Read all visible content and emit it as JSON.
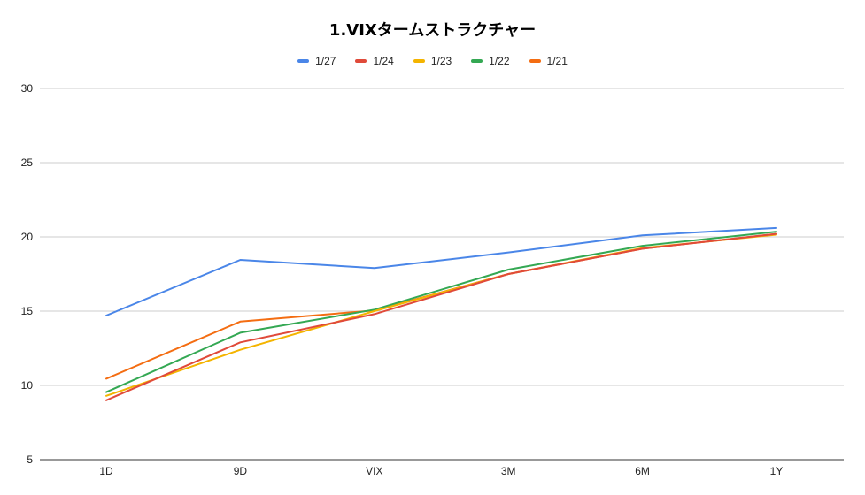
{
  "chart_data": {
    "type": "line",
    "title": "1.VIXタームストラクチャー",
    "categories": [
      "1D",
      "9D",
      "VIX",
      "3M",
      "6M",
      "1Y"
    ],
    "yticks": [
      "30",
      "25",
      "20",
      "15",
      "10",
      "5"
    ],
    "ylim": [
      5,
      30
    ],
    "grid": true,
    "legend_position": "top-center",
    "series": [
      {
        "name": "1/27",
        "color": "#4a86e8",
        "values": [
          14.7,
          18.45,
          17.9,
          18.95,
          20.1,
          20.6
        ]
      },
      {
        "name": "1/24",
        "color": "#e04a3a",
        "values": [
          9.0,
          12.9,
          14.8,
          17.5,
          19.2,
          20.2
        ]
      },
      {
        "name": "1/23",
        "color": "#f4b400",
        "values": [
          9.3,
          12.4,
          15.0,
          17.5,
          19.25,
          20.15
        ]
      },
      {
        "name": "1/22",
        "color": "#34a853",
        "values": [
          9.55,
          13.55,
          15.1,
          17.8,
          19.4,
          20.35
        ]
      },
      {
        "name": "1/21",
        "color": "#f46d12",
        "values": [
          10.45,
          14.3,
          15.05,
          17.5,
          19.2,
          20.2
        ]
      }
    ]
  }
}
